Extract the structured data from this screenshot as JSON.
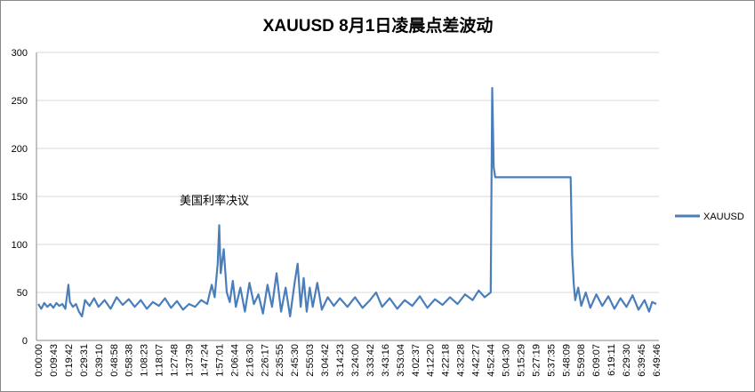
{
  "chart_data": {
    "type": "line",
    "title": "XAUUSD 8月1日凌晨点差波动",
    "xlabel": "",
    "ylabel": "",
    "ylim": [
      0,
      300
    ],
    "yticks": [
      0,
      50,
      100,
      150,
      200,
      250,
      300
    ],
    "grid": true,
    "legend_position": "right",
    "line_color": "#4a7ebb",
    "x_tick_labels": [
      "0:00:00",
      "0:09:43",
      "0:19:42",
      "0:29:31",
      "0:39:10",
      "0:48:58",
      "0:58:38",
      "1:08:23",
      "1:18:07",
      "1:27:48",
      "1:37:39",
      "1:47:24",
      "1:57:01",
      "2:06:44",
      "2:16:30",
      "2:26:17",
      "2:35:55",
      "2:45:30",
      "2:55:03",
      "3:04:42",
      "3:14:23",
      "3:24:00",
      "3:33:42",
      "3:43:16",
      "3:53:04",
      "4:02:37",
      "4:12:20",
      "4:22:18",
      "4:32:28",
      "4:42:27",
      "4:52:44",
      "5:04:30",
      "5:15:29",
      "5:27:19",
      "5:37:35",
      "5:48:09",
      "5:59:08",
      "6:09:07",
      "6:19:11",
      "6:29:30",
      "6:39:45",
      "6:49:46"
    ],
    "annotations": [
      {
        "text": "美国利率决议",
        "x": "1:57:01",
        "y": 145
      }
    ],
    "series": [
      {
        "name": "XAUUSD",
        "points": [
          [
            "0:00:00",
            38
          ],
          [
            "0:02:00",
            33
          ],
          [
            "0:04:00",
            39
          ],
          [
            "0:06:00",
            35
          ],
          [
            "0:08:00",
            38
          ],
          [
            "0:10:00",
            34
          ],
          [
            "0:12:00",
            39
          ],
          [
            "0:14:00",
            36
          ],
          [
            "0:16:00",
            38
          ],
          [
            "0:18:00",
            33
          ],
          [
            "0:20:00",
            58
          ],
          [
            "0:21:00",
            40
          ],
          [
            "0:23:00",
            35
          ],
          [
            "0:25:00",
            38
          ],
          [
            "0:27:00",
            30
          ],
          [
            "0:29:00",
            25
          ],
          [
            "0:31:00",
            42
          ],
          [
            "0:34:00",
            36
          ],
          [
            "0:37:00",
            44
          ],
          [
            "0:40:00",
            35
          ],
          [
            "0:44:00",
            42
          ],
          [
            "0:48:00",
            33
          ],
          [
            "0:52:00",
            45
          ],
          [
            "0:56:00",
            37
          ],
          [
            "1:00:00",
            43
          ],
          [
            "1:04:00",
            35
          ],
          [
            "1:08:00",
            42
          ],
          [
            "1:12:00",
            33
          ],
          [
            "1:16:00",
            40
          ],
          [
            "1:20:00",
            36
          ],
          [
            "1:24:00",
            44
          ],
          [
            "1:28:00",
            34
          ],
          [
            "1:32:00",
            41
          ],
          [
            "1:36:00",
            32
          ],
          [
            "1:40:00",
            38
          ],
          [
            "1:44:00",
            35
          ],
          [
            "1:48:00",
            42
          ],
          [
            "1:52:00",
            38
          ],
          [
            "1:55:00",
            58
          ],
          [
            "1:57:00",
            45
          ],
          [
            "1:59:00",
            80
          ],
          [
            "2:00:00",
            120
          ],
          [
            "2:01:00",
            70
          ],
          [
            "2:03:00",
            95
          ],
          [
            "2:05:00",
            50
          ],
          [
            "2:07:00",
            40
          ],
          [
            "2:09:00",
            62
          ],
          [
            "2:11:00",
            35
          ],
          [
            "2:14:00",
            55
          ],
          [
            "2:17:00",
            30
          ],
          [
            "2:20:00",
            60
          ],
          [
            "2:23:00",
            38
          ],
          [
            "2:26:00",
            48
          ],
          [
            "2:29:00",
            28
          ],
          [
            "2:32:00",
            58
          ],
          [
            "2:35:00",
            35
          ],
          [
            "2:38:00",
            70
          ],
          [
            "2:41:00",
            30
          ],
          [
            "2:44:00",
            55
          ],
          [
            "2:47:00",
            25
          ],
          [
            "2:50:00",
            60
          ],
          [
            "2:52:00",
            80
          ],
          [
            "2:54:00",
            35
          ],
          [
            "2:56:00",
            65
          ],
          [
            "2:58:00",
            30
          ],
          [
            "3:00:00",
            55
          ],
          [
            "3:02:00",
            35
          ],
          [
            "3:05:00",
            60
          ],
          [
            "3:08:00",
            32
          ],
          [
            "3:12:00",
            45
          ],
          [
            "3:16:00",
            36
          ],
          [
            "3:20:00",
            44
          ],
          [
            "3:25:00",
            35
          ],
          [
            "3:30:00",
            45
          ],
          [
            "3:35:00",
            34
          ],
          [
            "3:40:00",
            42
          ],
          [
            "3:44:00",
            50
          ],
          [
            "3:48:00",
            35
          ],
          [
            "3:53:00",
            44
          ],
          [
            "3:58:00",
            33
          ],
          [
            "4:03:00",
            42
          ],
          [
            "4:08:00",
            36
          ],
          [
            "4:13:00",
            46
          ],
          [
            "4:18:00",
            34
          ],
          [
            "4:23:00",
            43
          ],
          [
            "4:28:00",
            37
          ],
          [
            "4:33:00",
            45
          ],
          [
            "4:38:00",
            38
          ],
          [
            "4:43:00",
            48
          ],
          [
            "4:48:00",
            42
          ],
          [
            "4:52:00",
            52
          ],
          [
            "4:56:00",
            45
          ],
          [
            "5:00:00",
            50
          ],
          [
            "5:01:00",
            263
          ],
          [
            "5:02:00",
            180
          ],
          [
            "5:03:00",
            170
          ],
          [
            "5:53:00",
            170
          ],
          [
            "5:54:00",
            90
          ],
          [
            "5:55:00",
            60
          ],
          [
            "5:56:00",
            42
          ],
          [
            "5:58:00",
            55
          ],
          [
            "6:00:00",
            36
          ],
          [
            "6:03:00",
            50
          ],
          [
            "6:06:00",
            34
          ],
          [
            "6:10:00",
            48
          ],
          [
            "6:14:00",
            36
          ],
          [
            "6:18:00",
            46
          ],
          [
            "6:22:00",
            33
          ],
          [
            "6:26:00",
            44
          ],
          [
            "6:30:00",
            35
          ],
          [
            "6:34:00",
            47
          ],
          [
            "6:38:00",
            32
          ],
          [
            "6:42:00",
            42
          ],
          [
            "6:45:00",
            30
          ],
          [
            "6:47:00",
            40
          ],
          [
            "6:49:46",
            38
          ]
        ]
      }
    ]
  }
}
